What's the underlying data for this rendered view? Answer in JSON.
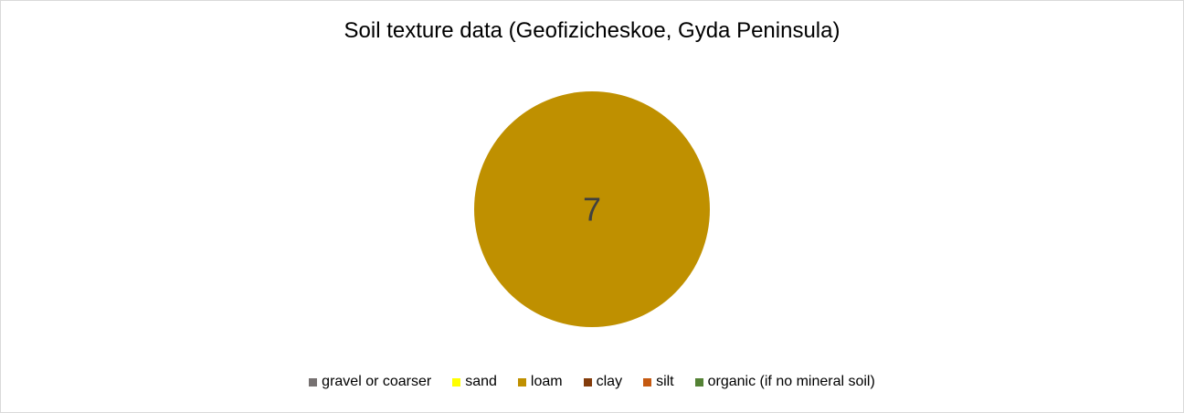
{
  "chart_data": {
    "type": "pie",
    "title": "Soil texture data (Geofizicheskoe,  Gyda Peninsula)",
    "categories": [
      "gravel or coarser",
      "sand",
      "loam",
      "clay",
      "silt",
      "organic (if no mineral soil)"
    ],
    "values": [
      0,
      0,
      7,
      0,
      0,
      0
    ],
    "colors": [
      "#767171",
      "#ffff00",
      "#bf9000",
      "#833c0b",
      "#c55a11",
      "#548235"
    ],
    "data_labels": [
      "",
      "",
      "7",
      "",
      "",
      ""
    ],
    "legend_position": "bottom"
  }
}
